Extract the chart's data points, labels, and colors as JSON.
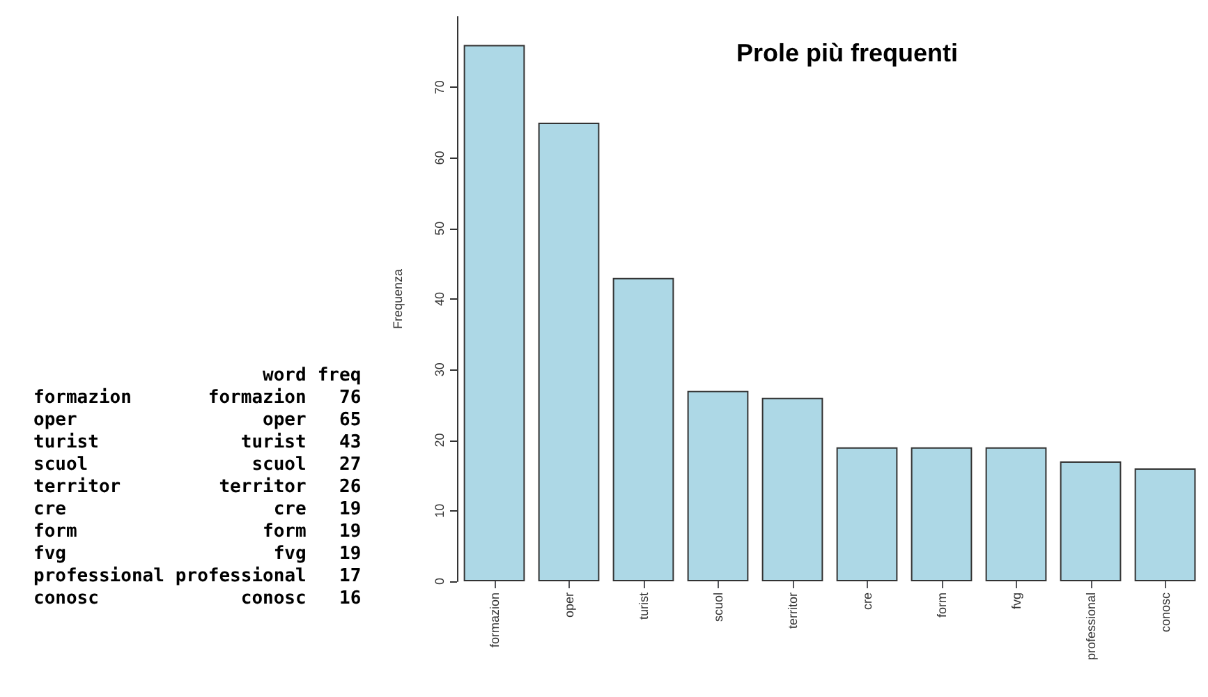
{
  "chart_data": [
    {
      "type": "other",
      "annotations": [
        "word",
        "freq",
        "formazion",
        "formazion",
        "76",
        "oper",
        "oper",
        "65",
        "turist",
        "turist",
        "43",
        "scuol",
        "scuol",
        "27",
        "territor",
        "territor",
        "26",
        "cre",
        "cre",
        "19",
        "form",
        "form",
        "19",
        "fvg",
        "fvg",
        "19",
        "professional",
        "professional",
        "17",
        "conosc",
        "conosc",
        "16"
      ]
    },
    {
      "type": "bar",
      "title": "Prole più frequenti",
      "ylabel": "Frequenza",
      "categories": [
        "formazion",
        "oper",
        "turist",
        "scuol",
        "territor",
        "cre",
        "form",
        "fvg",
        "professional",
        "conosc"
      ],
      "values": [
        76,
        65,
        43,
        27,
        26,
        19,
        19,
        19,
        17,
        16
      ],
      "color": "#add8e6",
      "ylim": [
        0,
        80
      ],
      "yticks": [
        0,
        10,
        20,
        30,
        40,
        50,
        60,
        70
      ],
      "grid": false
    }
  ]
}
